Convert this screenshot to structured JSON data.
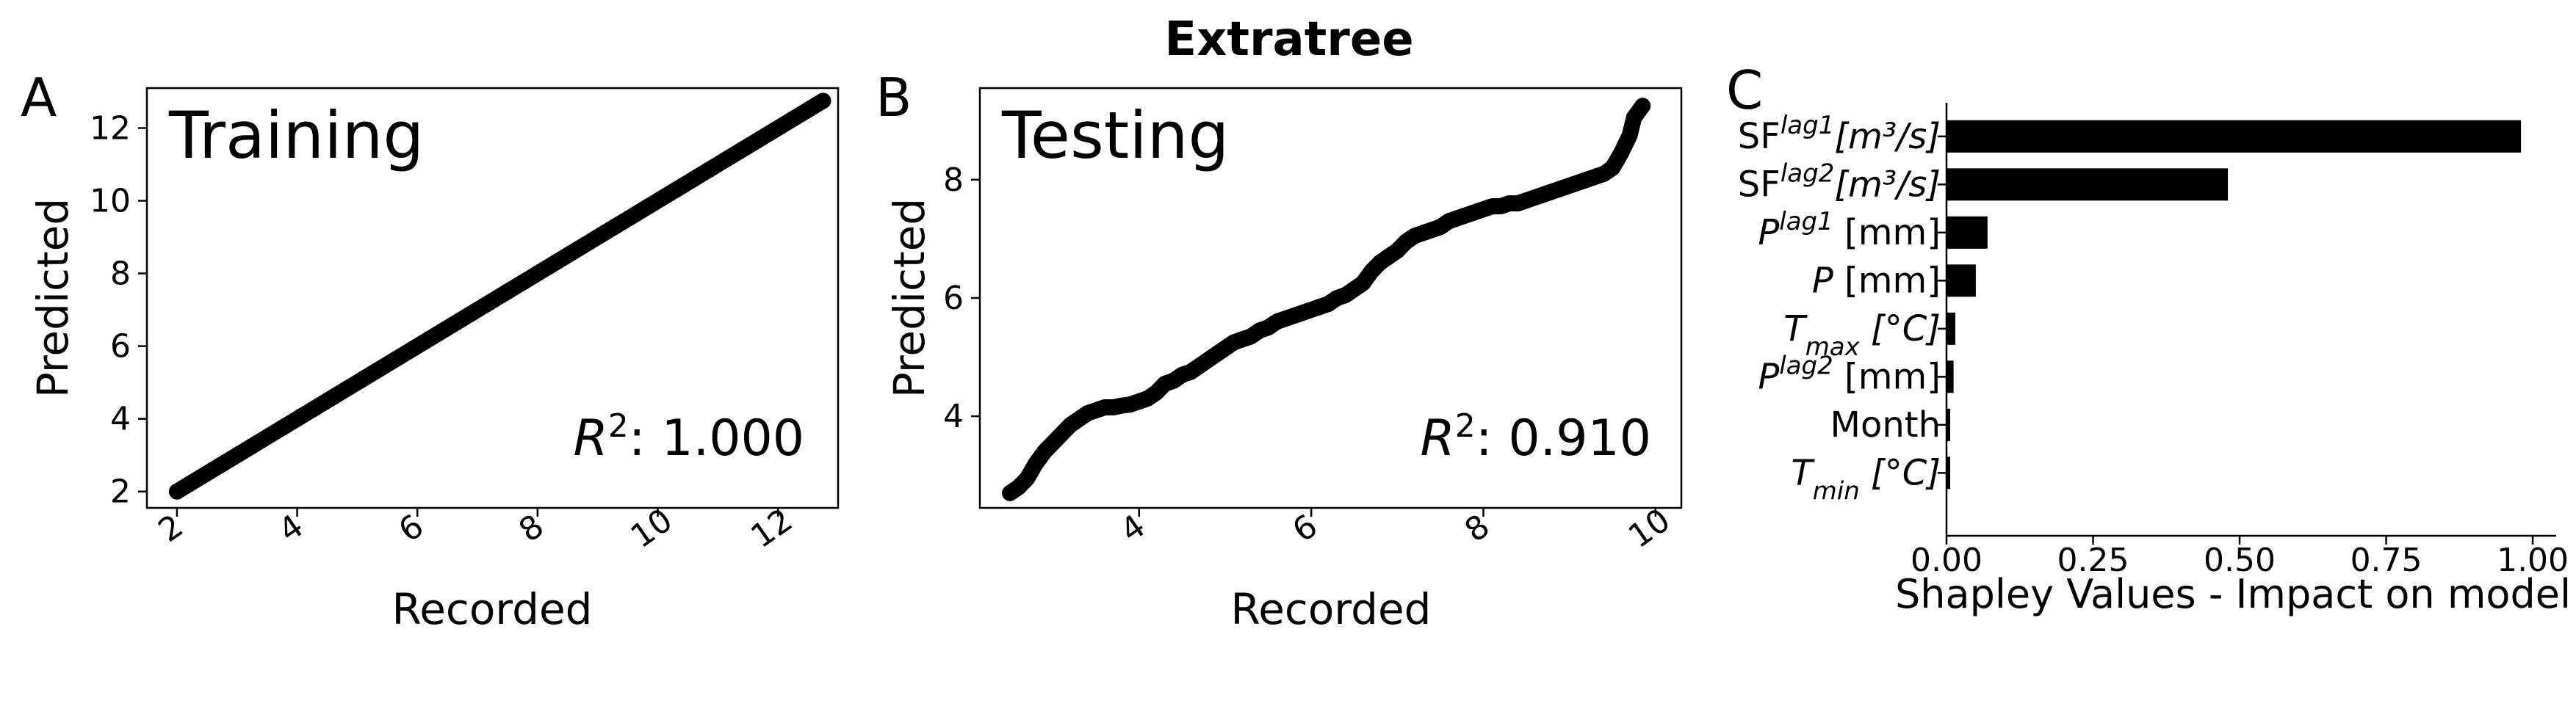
{
  "figure": {
    "title": "Extratree"
  },
  "chart_data": [
    {
      "panel_letter": "A",
      "type": "scatter",
      "title": "Training",
      "xlabel": "Recorded",
      "ylabel": "Predicted",
      "xlim": [
        1.5,
        13.0
      ],
      "ylim": [
        1.55,
        13.1
      ],
      "xticks": [
        2,
        4,
        6,
        8,
        10,
        12
      ],
      "yticks": [
        2,
        4,
        6,
        8,
        10,
        12
      ],
      "annotation": {
        "prefix": "R",
        "sup": "2",
        "text": ": 1.000"
      },
      "r2": 1.0,
      "points": [
        [
          2.0,
          2.0
        ],
        [
          2.3,
          2.3
        ],
        [
          2.6,
          2.6
        ],
        [
          2.9,
          2.9
        ],
        [
          3.2,
          3.2
        ],
        [
          3.5,
          3.5
        ],
        [
          3.8,
          3.8
        ],
        [
          4.1,
          4.1
        ],
        [
          4.4,
          4.4
        ],
        [
          4.7,
          4.7
        ],
        [
          5.0,
          5.0
        ],
        [
          5.3,
          5.3
        ],
        [
          5.6,
          5.6
        ],
        [
          5.9,
          5.9
        ],
        [
          6.2,
          6.2
        ],
        [
          6.5,
          6.5
        ],
        [
          6.8,
          6.8
        ],
        [
          7.1,
          7.1
        ],
        [
          7.4,
          7.4
        ],
        [
          7.7,
          7.7
        ],
        [
          8.0,
          8.0
        ],
        [
          8.3,
          8.3
        ],
        [
          8.6,
          8.6
        ],
        [
          8.9,
          8.9
        ],
        [
          9.2,
          9.2
        ],
        [
          9.5,
          9.5
        ],
        [
          9.8,
          9.8
        ],
        [
          10.1,
          10.1
        ],
        [
          10.4,
          10.4
        ],
        [
          10.7,
          10.7
        ],
        [
          11.0,
          11.0
        ],
        [
          11.3,
          11.3
        ],
        [
          11.6,
          11.6
        ],
        [
          11.9,
          11.9
        ],
        [
          12.2,
          12.2
        ],
        [
          12.5,
          12.5
        ],
        [
          12.75,
          12.75
        ]
      ]
    },
    {
      "panel_letter": "B",
      "type": "scatter",
      "title": "Testing",
      "xlabel": "Recorded",
      "ylabel": "Predicted",
      "xlim": [
        2.15,
        10.3
      ],
      "ylim": [
        2.45,
        9.55
      ],
      "xticks": [
        4,
        6,
        8,
        10
      ],
      "yticks": [
        4,
        6,
        8
      ],
      "annotation": {
        "prefix": "R",
        "sup": "2",
        "text": ": 0.910"
      },
      "r2": 0.91,
      "points": [
        [
          2.5,
          2.7
        ],
        [
          2.6,
          2.8
        ],
        [
          2.7,
          2.95
        ],
        [
          2.8,
          3.2
        ],
        [
          2.9,
          3.4
        ],
        [
          3.0,
          3.55
        ],
        [
          3.1,
          3.7
        ],
        [
          3.2,
          3.85
        ],
        [
          3.3,
          3.95
        ],
        [
          3.4,
          4.05
        ],
        [
          3.5,
          4.1
        ],
        [
          3.6,
          4.15
        ],
        [
          3.7,
          4.15
        ],
        [
          3.8,
          4.18
        ],
        [
          3.9,
          4.2
        ],
        [
          4.0,
          4.25
        ],
        [
          4.1,
          4.3
        ],
        [
          4.2,
          4.4
        ],
        [
          4.3,
          4.55
        ],
        [
          4.4,
          4.6
        ],
        [
          4.5,
          4.7
        ],
        [
          4.6,
          4.75
        ],
        [
          4.7,
          4.85
        ],
        [
          4.8,
          4.95
        ],
        [
          4.9,
          5.05
        ],
        [
          5.0,
          5.15
        ],
        [
          5.1,
          5.25
        ],
        [
          5.2,
          5.3
        ],
        [
          5.3,
          5.35
        ],
        [
          5.4,
          5.45
        ],
        [
          5.5,
          5.5
        ],
        [
          5.6,
          5.6
        ],
        [
          5.7,
          5.65
        ],
        [
          5.8,
          5.7
        ],
        [
          5.9,
          5.75
        ],
        [
          6.0,
          5.8
        ],
        [
          6.1,
          5.85
        ],
        [
          6.2,
          5.9
        ],
        [
          6.3,
          6.0
        ],
        [
          6.4,
          6.05
        ],
        [
          6.5,
          6.15
        ],
        [
          6.6,
          6.25
        ],
        [
          6.7,
          6.45
        ],
        [
          6.8,
          6.6
        ],
        [
          6.9,
          6.7
        ],
        [
          7.0,
          6.8
        ],
        [
          7.1,
          6.95
        ],
        [
          7.2,
          7.05
        ],
        [
          7.3,
          7.1
        ],
        [
          7.4,
          7.15
        ],
        [
          7.5,
          7.2
        ],
        [
          7.6,
          7.3
        ],
        [
          7.7,
          7.35
        ],
        [
          7.8,
          7.4
        ],
        [
          7.9,
          7.45
        ],
        [
          8.0,
          7.5
        ],
        [
          8.1,
          7.55
        ],
        [
          8.2,
          7.55
        ],
        [
          8.3,
          7.6
        ],
        [
          8.4,
          7.6
        ],
        [
          8.5,
          7.65
        ],
        [
          8.6,
          7.7
        ],
        [
          8.7,
          7.75
        ],
        [
          8.8,
          7.8
        ],
        [
          8.9,
          7.85
        ],
        [
          9.0,
          7.9
        ],
        [
          9.1,
          7.95
        ],
        [
          9.2,
          8.0
        ],
        [
          9.3,
          8.05
        ],
        [
          9.4,
          8.1
        ],
        [
          9.5,
          8.2
        ],
        [
          9.6,
          8.45
        ],
        [
          9.7,
          8.75
        ],
        [
          9.75,
          9.05
        ],
        [
          9.85,
          9.25
        ]
      ]
    },
    {
      "panel_letter": "C",
      "type": "bar",
      "orientation": "horizontal",
      "xlabel": "Shapley Values - Impact on model",
      "xlim": [
        0,
        1.04
      ],
      "xticks": [
        0.0,
        0.25,
        0.5,
        0.75,
        1.0
      ],
      "xtick_labels": [
        "0.00",
        "0.25",
        "0.50",
        "0.75",
        "1.00"
      ],
      "categories": [
        {
          "base": "SF",
          "base_italic": false,
          "sup": "lag1",
          "sub": "",
          "unit": "[m³/s]",
          "unit_italic": true,
          "gap": false
        },
        {
          "base": "SF",
          "base_italic": false,
          "sup": "lag2",
          "sub": "",
          "unit": "[m³/s]",
          "unit_italic": true,
          "gap": false
        },
        {
          "base": "P",
          "base_italic": true,
          "sup": "lag1",
          "sub": "",
          "unit": "[mm]",
          "unit_italic": false,
          "gap": true
        },
        {
          "base": "P",
          "base_italic": true,
          "sup": "",
          "sub": "",
          "unit": "[mm]",
          "unit_italic": false,
          "gap": true
        },
        {
          "base": "T",
          "base_italic": true,
          "sup": "",
          "sub": "max",
          "unit": "[°C]",
          "unit_italic": true,
          "gap": true
        },
        {
          "base": "P",
          "base_italic": true,
          "sup": "lag2",
          "sub": "",
          "unit": "[mm]",
          "unit_italic": false,
          "gap": true
        },
        {
          "base": "Month",
          "base_italic": false,
          "sup": "",
          "sub": "",
          "unit": "",
          "unit_italic": false,
          "gap": false
        },
        {
          "base": "T",
          "base_italic": true,
          "sup": "",
          "sub": "min",
          "unit": "[°C]",
          "unit_italic": true,
          "gap": true
        }
      ],
      "values": [
        0.98,
        0.48,
        0.07,
        0.05,
        0.015,
        0.012,
        0.006,
        0.006
      ]
    }
  ]
}
